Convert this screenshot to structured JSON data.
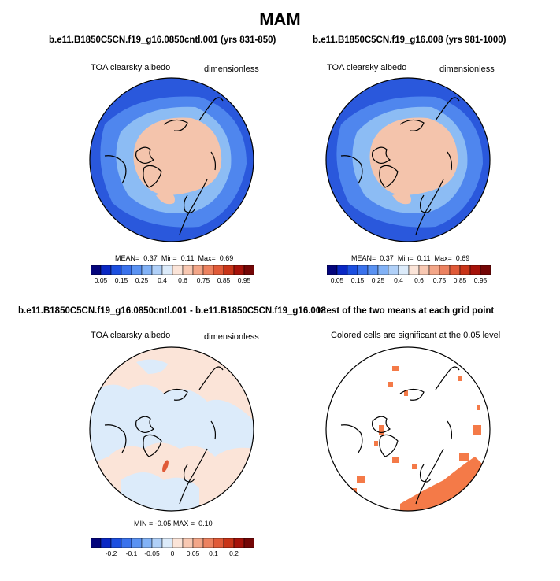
{
  "title": "MAM",
  "panels": {
    "p1": {
      "case": "b.e11.B1850C5CN.f19_g16.0850cntl.001 (yrs 831-850)",
      "left_label": "TOA clearsky albedo",
      "right_label": "dimensionless",
      "stats": {
        "mean_label": "MEAN=",
        "mean": "0.37",
        "min_label": "Min=",
        "min": "0.11",
        "max_label": "Max=",
        "max": "0.69"
      }
    },
    "p2": {
      "case": "b.e11.B1850C5CN.f19_g16.008 (yrs 981-1000)",
      "left_label": "TOA clearsky albedo",
      "right_label": "dimensionless",
      "stats": {
        "mean_label": "MEAN=",
        "mean": "0.37",
        "min_label": "Min=",
        "min": "0.11",
        "max_label": "Max=",
        "max": "0.69"
      }
    },
    "p3": {
      "case": "b.e11.B1850C5CN.f19_g16.0850cntl.001 - b.e11.B1850C5CN.f19_g16.008",
      "left_label": "TOA clearsky albedo",
      "right_label": "dimensionless",
      "stats": {
        "min_label": "MIN =",
        "min": "-0.05",
        "max_label": "MAX =",
        "max": "0.10"
      }
    },
    "p4": {
      "case": "t-test of the two means at each grid point",
      "subtitle": "Colored cells are significant at the 0.05 level"
    }
  },
  "colorbars": {
    "abs_colors": [
      "#04057c",
      "#0a28c4",
      "#1c4fe0",
      "#3a72ec",
      "#5a92f2",
      "#82b2f6",
      "#b0d0f8",
      "#dcebfa",
      "#fbe4d8",
      "#f8c8b2",
      "#f3a688",
      "#ec8260",
      "#e05a38",
      "#c83418",
      "#a6120a",
      "#740606"
    ],
    "abs_ticks": [
      "0.05",
      "0.15",
      "0.25",
      "0.4",
      "0.6",
      "0.75",
      "0.85",
      "0.95"
    ],
    "diff_colors": [
      "#04057c",
      "#0a28c4",
      "#1c4fe0",
      "#3a72ec",
      "#5a92f2",
      "#82b2f6",
      "#b0d0f8",
      "#dcebfa",
      "#fbe4d8",
      "#f8c8b2",
      "#f3a688",
      "#ec8260",
      "#e05a38",
      "#c83418",
      "#a6120a",
      "#740606"
    ],
    "diff_ticks": [
      "-0.2",
      "-0.1",
      "-0.05",
      "0",
      "0.05",
      "0.1",
      "0.2"
    ]
  },
  "map_colors": {
    "ocean_dark": "#2a58dc",
    "ocean_mid": "#4f86ee",
    "ocean_light": "#8cbcf4",
    "ice": "#f4c4ac",
    "diff_neg": "#dcebfa",
    "diff_pos": "#fbe4d8",
    "diff_hot": "#e05a38",
    "signif": "#f47a48"
  }
}
